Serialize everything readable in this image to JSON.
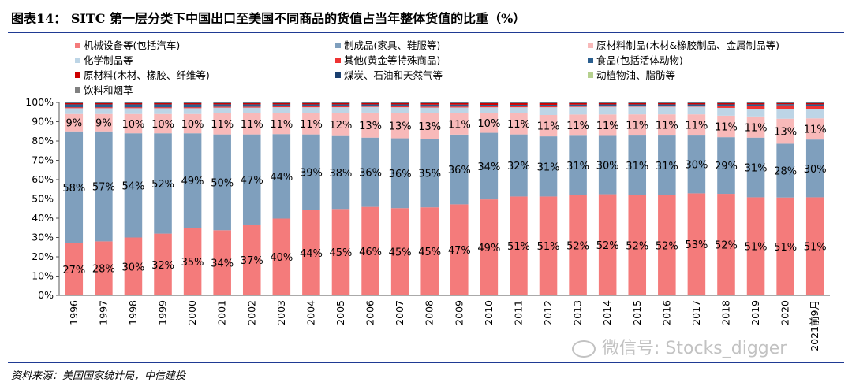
{
  "header": {
    "title": "图表14：  SITC 第一层分类下中国出口至美国不同商品的货值占当年整体货值的比重（%）"
  },
  "footer": {
    "source": "资料来源：美国国家统计局，中信建投"
  },
  "watermark": {
    "text": "微信号: Stocks_digger",
    "icon": "wechat-icon"
  },
  "chart_data": {
    "type": "bar",
    "stacked": true,
    "title": "SITC 第一层分类下中国出口至美国不同商品的货值占当年整体货值的比重（%）",
    "xlabel": "",
    "ylabel": "",
    "ylim": [
      0,
      100
    ],
    "yticks": [
      "0%",
      "10%",
      "20%",
      "30%",
      "40%",
      "50%",
      "60%",
      "70%",
      "80%",
      "90%",
      "100%"
    ],
    "legend_position": "top",
    "categories": [
      "1996",
      "1997",
      "1998",
      "1999",
      "2000",
      "2001",
      "2002",
      "2003",
      "2004",
      "2005",
      "2006",
      "2007",
      "2008",
      "2009",
      "2010",
      "2011",
      "2012",
      "2013",
      "2014",
      "2015",
      "2016",
      "2017",
      "2018",
      "2019",
      "2020",
      "2021前9月"
    ],
    "series": [
      {
        "name": "机械设备等(包括汽车)",
        "color": "#f47b7b",
        "values": [
          27,
          28,
          30,
          32,
          35,
          34,
          37,
          40,
          44,
          45,
          46,
          45,
          45,
          47,
          49,
          51,
          51,
          52,
          52,
          52,
          52,
          53,
          52,
          51,
          51,
          51
        ]
      },
      {
        "name": "制成品(家具、鞋服等)",
        "color": "#7f9fbd",
        "values": [
          58,
          57,
          54,
          52,
          49,
          50,
          47,
          44,
          39,
          38,
          36,
          36,
          35,
          36,
          34,
          32,
          31,
          31,
          30,
          31,
          31,
          30,
          29,
          31,
          28,
          30
        ]
      },
      {
        "name": "原材料制品(木材&橡胶制品、金属制品等)",
        "color": "#f8b9b9",
        "values": [
          9,
          9,
          10,
          10,
          10,
          11,
          11,
          11,
          11,
          12,
          13,
          13,
          13,
          11,
          10,
          11,
          11,
          11,
          11,
          11,
          11,
          11,
          11,
          11,
          13,
          11
        ]
      },
      {
        "name": "化学制品等",
        "color": "#bdd5e6",
        "values": [
          3,
          3,
          3,
          3,
          3,
          3,
          3,
          3,
          3,
          3,
          3,
          3,
          3,
          3,
          3,
          3,
          4,
          4,
          4,
          4,
          4,
          4,
          4,
          4,
          5,
          5
        ]
      },
      {
        "name": "其他(黄金等特殊商品)",
        "color": "#ee3333",
        "values": [
          0.5,
          0.5,
          0.5,
          0.5,
          0.5,
          0.5,
          0.5,
          0.5,
          0.5,
          0.5,
          0.5,
          0.5,
          0.5,
          0.5,
          0.5,
          0.5,
          0.5,
          0.5,
          0.5,
          0.5,
          0.5,
          0.5,
          1,
          1.5,
          2,
          1.5
        ]
      },
      {
        "name": "食品(包括活体动物)",
        "color": "#2b5f8f",
        "values": [
          1.5,
          1.5,
          1.5,
          1.5,
          1.5,
          1.2,
          1.2,
          1,
          1,
          1,
          0.8,
          1,
          1,
          1,
          0.8,
          0.8,
          0.8,
          0.7,
          0.7,
          0.7,
          0.7,
          0.7,
          0.8,
          0.8,
          0.6,
          0.8
        ]
      },
      {
        "name": "原材料(木材、橡胶、纤维等)",
        "color": "#cc0000",
        "values": [
          0.6,
          0.6,
          0.6,
          0.6,
          0.6,
          0.6,
          0.6,
          0.6,
          0.6,
          0.6,
          0.6,
          0.6,
          0.7,
          0.7,
          0.8,
          0.8,
          0.8,
          0.7,
          0.6,
          0.6,
          0.6,
          0.6,
          0.6,
          0.6,
          0.5,
          0.6
        ]
      },
      {
        "name": "煤炭、石油和天然气等",
        "color": "#1a3f6f",
        "values": [
          0.2,
          0.2,
          0.2,
          0.2,
          0.2,
          0.2,
          0.2,
          0.2,
          0.2,
          0.2,
          0.2,
          0.2,
          0.2,
          0.2,
          0.2,
          0.2,
          0.2,
          0.2,
          0.2,
          0.2,
          0.2,
          0.2,
          0.2,
          0.2,
          0.2,
          0.2
        ]
      },
      {
        "name": "动植物油、脂肪等",
        "color": "#b5d08e",
        "values": [
          0.1,
          0.1,
          0.1,
          0.1,
          0.1,
          0.1,
          0.1,
          0.1,
          0.1,
          0.1,
          0.1,
          0.1,
          0.1,
          0.1,
          0.1,
          0.1,
          0.1,
          0.1,
          0.1,
          0.1,
          0.1,
          0.1,
          0.1,
          0.1,
          0.1,
          0.1
        ]
      },
      {
        "name": "饮料和烟草",
        "color": "#808080",
        "values": [
          0.1,
          0.1,
          0.1,
          0.1,
          0.1,
          0.1,
          0.1,
          0.1,
          0.1,
          0.1,
          0.1,
          0.1,
          0.1,
          0.1,
          0.1,
          0.1,
          0.1,
          0.1,
          0.1,
          0.1,
          0.1,
          0.1,
          0.1,
          0.1,
          0.1,
          0.1
        ]
      }
    ],
    "data_labels": {
      "series_indices": [
        0,
        1,
        2
      ],
      "format": "{v}%"
    }
  }
}
